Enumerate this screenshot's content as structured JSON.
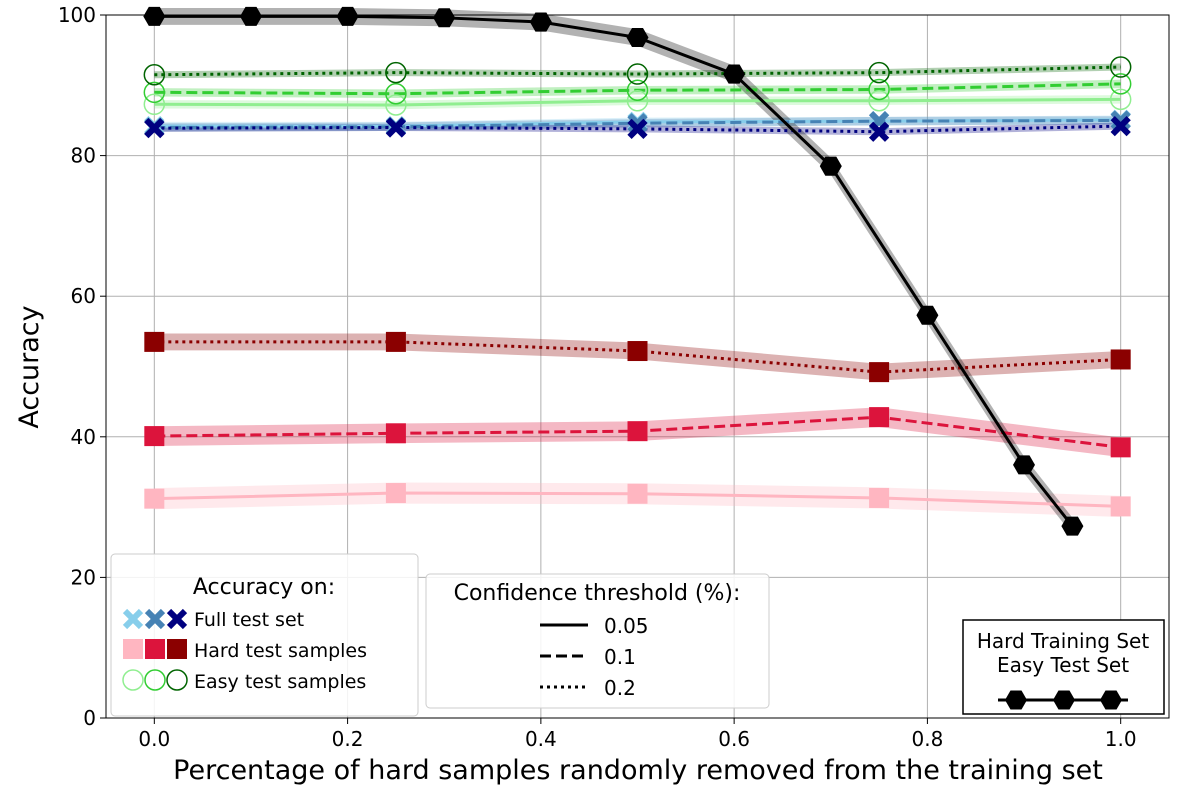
{
  "chart_data": {
    "type": "line",
    "xlabel": "Percentage of hard samples randomly removed from the training set",
    "ylabel": "Accuracy",
    "xlim": [
      -0.05,
      1.05
    ],
    "ylim": [
      0,
      100
    ],
    "x_ticks": [
      "0.0",
      "0.2",
      "0.4",
      "0.6",
      "0.8",
      "1.0"
    ],
    "y_ticks": [
      "0",
      "20",
      "40",
      "60",
      "80",
      "100"
    ],
    "grid": true,
    "series": [
      {
        "group": "hard",
        "threshold": "0.05",
        "color": "#ffb6c1",
        "style": "solid",
        "marker": "square",
        "x": [
          0,
          0.25,
          0.5,
          0.75,
          1.0
        ],
        "y": [
          31.2,
          32.0,
          31.9,
          31.3,
          30.1
        ],
        "band": 1.5
      },
      {
        "group": "hard",
        "threshold": "0.1",
        "color": "#dc143c",
        "style": "dashed",
        "marker": "square",
        "x": [
          0,
          0.25,
          0.5,
          0.75,
          1.0
        ],
        "y": [
          40.1,
          40.5,
          40.8,
          42.8,
          38.5
        ],
        "band": 1.4
      },
      {
        "group": "hard",
        "threshold": "0.2",
        "color": "#8b0000",
        "style": "dotted",
        "marker": "square",
        "x": [
          0,
          0.25,
          0.5,
          0.75,
          1.0
        ],
        "y": [
          53.5,
          53.5,
          52.2,
          49.2,
          51.0
        ],
        "band": 1.2
      },
      {
        "group": "easy",
        "threshold": "0.05",
        "color": "#90ee90",
        "style": "solid",
        "marker": "circle",
        "x": [
          0,
          0.25,
          0.5,
          0.75,
          1.0
        ],
        "y": [
          87.3,
          87.2,
          87.8,
          87.8,
          88.0
        ],
        "band": 0.6
      },
      {
        "group": "easy",
        "threshold": "0.1",
        "color": "#32cd32",
        "style": "dashed",
        "marker": "circle",
        "x": [
          0,
          0.25,
          0.5,
          0.75,
          1.0
        ],
        "y": [
          89.0,
          88.8,
          89.3,
          89.4,
          90.2
        ],
        "band": 0.6
      },
      {
        "group": "easy",
        "threshold": "0.2",
        "color": "#006400",
        "style": "dotted",
        "marker": "circle",
        "x": [
          0,
          0.25,
          0.5,
          0.75,
          1.0
        ],
        "y": [
          91.5,
          91.8,
          91.6,
          91.8,
          92.6
        ],
        "band": 0.5
      },
      {
        "group": "full",
        "threshold": "0.05",
        "color": "#87ceeb",
        "style": "solid",
        "marker": "x",
        "x": [
          0,
          0.25,
          0.5,
          0.75,
          1.0
        ],
        "y": [
          84.2,
          84.2,
          84.8,
          84.9,
          85.1
        ],
        "band": 0.6
      },
      {
        "group": "full",
        "threshold": "0.1",
        "color": "#4682b4",
        "style": "dashed",
        "marker": "x",
        "x": [
          0,
          0.25,
          0.5,
          0.75,
          1.0
        ],
        "y": [
          84.0,
          84.1,
          84.6,
          84.9,
          85.0
        ],
        "band": 0.6
      },
      {
        "group": "full",
        "threshold": "0.2",
        "color": "#000080",
        "style": "dotted",
        "marker": "x",
        "x": [
          0,
          0.25,
          0.5,
          0.75,
          1.0
        ],
        "y": [
          83.9,
          84.0,
          83.8,
          83.4,
          84.2
        ],
        "band": 0.5
      },
      {
        "group": "hard-training",
        "threshold": "",
        "color": "#000000",
        "style": "solid",
        "marker": "hexagon",
        "x": [
          0,
          0.1,
          0.2,
          0.3,
          0.4,
          0.5,
          0.6,
          0.7,
          0.8,
          0.9,
          0.95
        ],
        "y": [
          99.8,
          99.8,
          99.8,
          99.6,
          99.0,
          96.8,
          91.6,
          78.5,
          57.3,
          36.0,
          27.3
        ],
        "band": 1.2
      }
    ],
    "legend_accuracy": {
      "title": "Accuracy on:",
      "entries": [
        "Full test set",
        "Hard test samples",
        "Easy test samples"
      ],
      "placement": "bottom-left"
    },
    "legend_threshold": {
      "title": "Confidence threshold (%):",
      "entries": [
        "0.05",
        "0.1",
        "0.2"
      ],
      "placement": "bottom-center-left"
    },
    "legend_training": {
      "title_line1": "Hard Training Set",
      "title_line2": "Easy Test Set",
      "placement": "bottom-right"
    }
  }
}
